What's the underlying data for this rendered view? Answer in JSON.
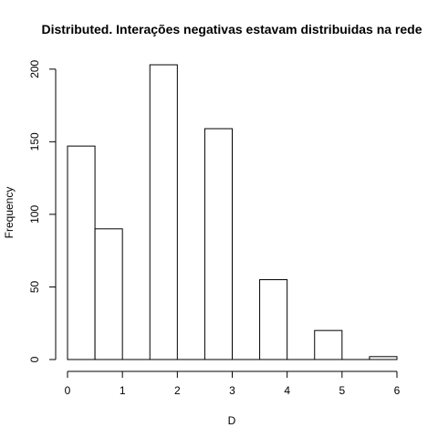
{
  "chart_data": {
    "type": "bar",
    "title": "Distributed. Interações negativas estavam distribuidas na rede",
    "xlabel": "D",
    "ylabel": "Frequency",
    "bins": [
      {
        "x0": 0.0,
        "x1": 0.5,
        "value": 147
      },
      {
        "x0": 0.5,
        "x1": 1.0,
        "value": 90
      },
      {
        "x0": 1.0,
        "x1": 1.5,
        "value": 0
      },
      {
        "x0": 1.5,
        "x1": 2.0,
        "value": 203
      },
      {
        "x0": 2.0,
        "x1": 2.5,
        "value": 0
      },
      {
        "x0": 2.5,
        "x1": 3.0,
        "value": 159
      },
      {
        "x0": 3.0,
        "x1": 3.5,
        "value": 0
      },
      {
        "x0": 3.5,
        "x1": 4.0,
        "value": 55
      },
      {
        "x0": 4.0,
        "x1": 4.5,
        "value": 0
      },
      {
        "x0": 4.5,
        "x1": 5.0,
        "value": 20
      },
      {
        "x0": 5.0,
        "x1": 5.5,
        "value": 0
      },
      {
        "x0": 5.5,
        "x1": 6.0,
        "value": 2
      }
    ],
    "xlim": [
      0,
      6
    ],
    "ylim": [
      0,
      203
    ],
    "xticks": [
      "0",
      "1",
      "2",
      "3",
      "4",
      "5",
      "6"
    ],
    "yticks": [
      "0",
      "50",
      "100",
      "150",
      "200"
    ],
    "grid": false,
    "colors": {
      "bar_fill": "#ffffff",
      "bar_stroke": "#000000"
    }
  }
}
